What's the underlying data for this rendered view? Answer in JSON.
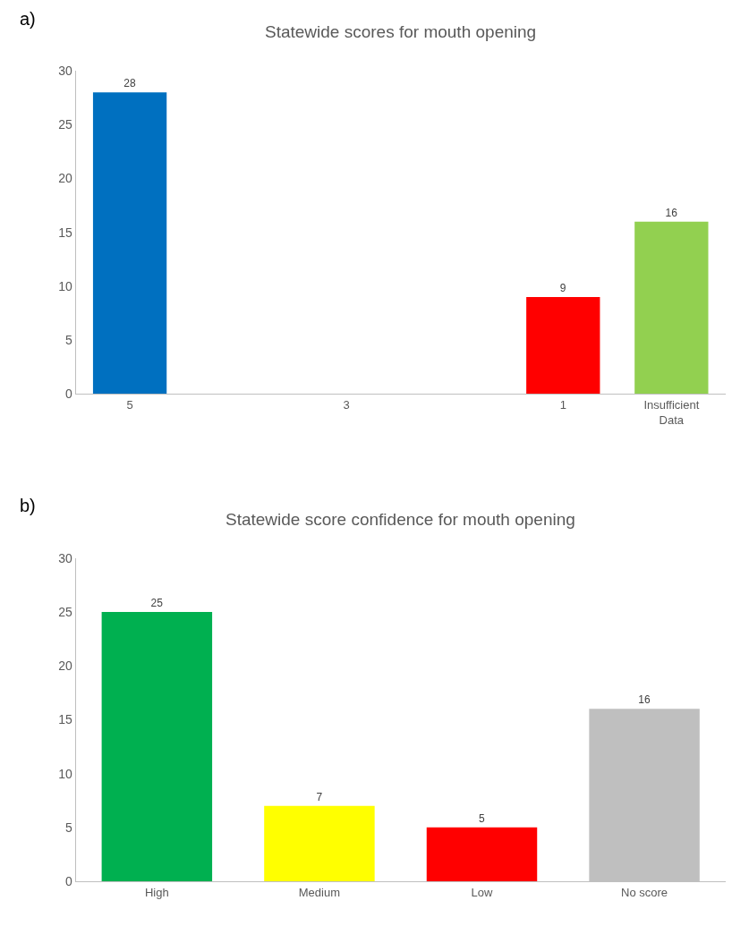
{
  "chart_data": [
    {
      "type": "bar",
      "title": "Statewide scores for mouth opening",
      "annotations": [
        "a)"
      ],
      "categories": [
        "5",
        null,
        "3",
        null,
        "1",
        "Insufficient Data"
      ],
      "values": [
        28,
        null,
        null,
        null,
        9,
        16
      ],
      "colors": [
        "#0070c0",
        "#0070c0",
        "#0070c0",
        "#0070c0",
        "#ff0000",
        "#92d050"
      ],
      "ylim": [
        0,
        30
      ],
      "yticks": [
        0,
        5,
        10,
        15,
        20,
        25,
        30
      ],
      "data_labels": true
    },
    {
      "type": "bar",
      "title": "Statewide score confidence for mouth opening",
      "annotations": [
        "b)"
      ],
      "categories": [
        "High",
        "Medium",
        "Low",
        "No score"
      ],
      "values": [
        25,
        7,
        5,
        16
      ],
      "colors": [
        "#00b050",
        "#ffff00",
        "#ff0000",
        "#bfbfbf"
      ],
      "ylim": [
        0,
        30
      ],
      "yticks": [
        0,
        5,
        10,
        15,
        20,
        25,
        30
      ],
      "data_labels": true
    }
  ]
}
